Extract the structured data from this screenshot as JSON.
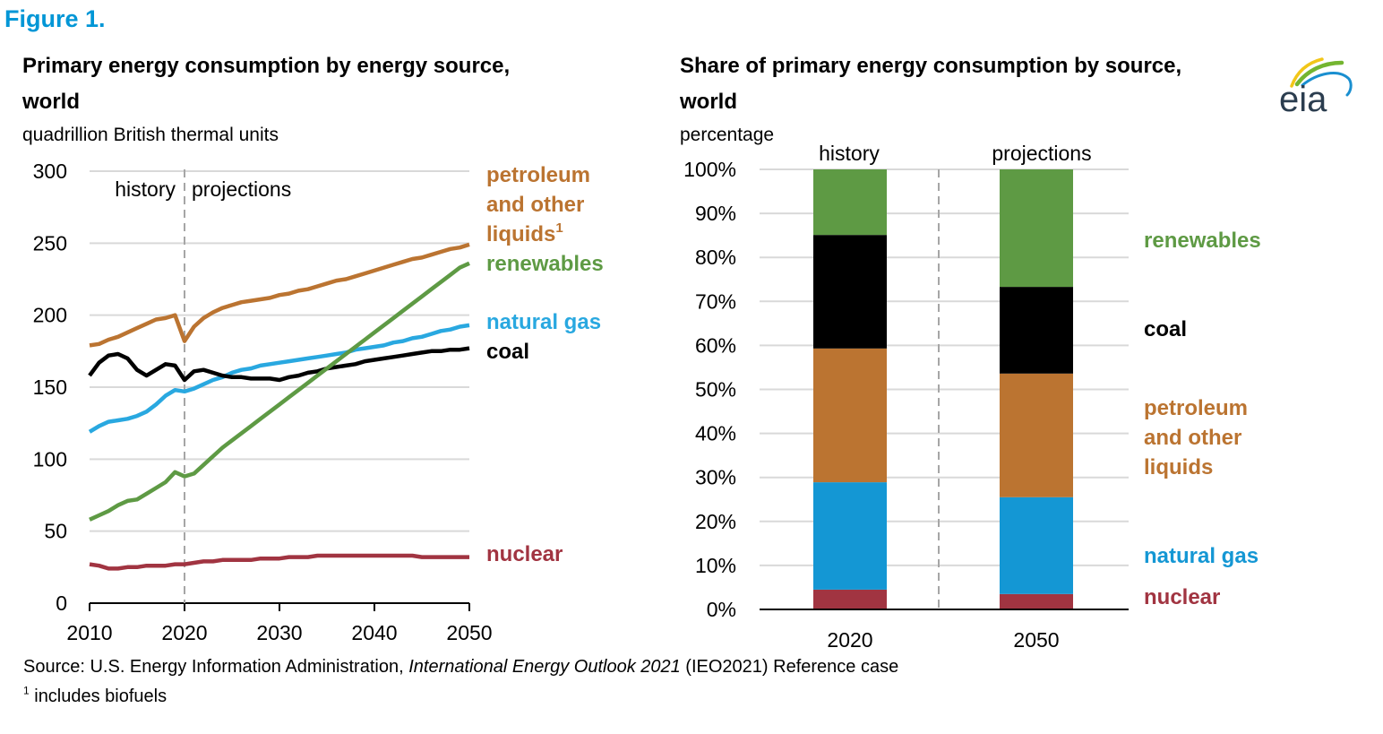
{
  "figure_label": "Figure 1.",
  "source": {
    "prefix": "Source:  U.S. Energy Information Administration, ",
    "italic": "International Energy Outlook 2021",
    "suffix": " (IEO2021) Reference case"
  },
  "footnote": {
    "marker": "1",
    "text": " includes biofuels"
  },
  "logo": {
    "text": "eia",
    "icon": "eia-logo-icon"
  },
  "colors": {
    "petroleum": "#bb7431",
    "renewables": "#5e9a44",
    "natural_gas": "#29a8e0",
    "natural_gas_bar": "#1497d4",
    "coal": "#000000",
    "nuclear": "#a13441",
    "title_blue": "#0096d6",
    "grid": "#d9d9d9",
    "divider": "#a6a6a6"
  },
  "chart_data": [
    {
      "type": "line",
      "title": "Primary energy consumption by energy source, world",
      "title_line1": "Primary energy consumption by energy source,",
      "title_line2": "world",
      "ylabel": "quadrillion British thermal units",
      "xlabel": "",
      "xlim": [
        2010,
        2050
      ],
      "ylim": [
        0,
        300
      ],
      "grid": true,
      "x_ticks": [
        "2010",
        "2020",
        "2030",
        "2040",
        "2050"
      ],
      "y_ticks": [
        "0",
        "50",
        "100",
        "150",
        "200",
        "250",
        "300"
      ],
      "divider_year": 2020,
      "phase_labels": {
        "history": "history",
        "projections": "projections"
      },
      "x": [
        2010,
        2011,
        2012,
        2013,
        2014,
        2015,
        2016,
        2017,
        2018,
        2019,
        2020,
        2021,
        2022,
        2023,
        2024,
        2025,
        2026,
        2027,
        2028,
        2029,
        2030,
        2031,
        2032,
        2033,
        2034,
        2035,
        2036,
        2037,
        2038,
        2039,
        2040,
        2041,
        2042,
        2043,
        2044,
        2045,
        2046,
        2047,
        2048,
        2049,
        2050
      ],
      "series": [
        {
          "key": "petroleum",
          "name": "petroleum and other liquids",
          "label_lines": [
            "petroleum",
            "and other",
            "liquids"
          ],
          "label_sup": "1",
          "values": [
            179,
            180,
            183,
            185,
            188,
            191,
            194,
            197,
            198,
            200,
            182,
            192,
            198,
            202,
            205,
            207,
            209,
            210,
            211,
            212,
            214,
            215,
            217,
            218,
            220,
            222,
            224,
            225,
            227,
            229,
            231,
            233,
            235,
            237,
            239,
            240,
            242,
            244,
            246,
            247,
            249
          ]
        },
        {
          "key": "renewables",
          "name": "renewables",
          "label_lines": [
            "renewables"
          ],
          "values": [
            58,
            61,
            64,
            68,
            71,
            72,
            76,
            80,
            84,
            91,
            88,
            90,
            96,
            102,
            108,
            113,
            118,
            123,
            128,
            133,
            138,
            143,
            148,
            153,
            158,
            163,
            168,
            173,
            178,
            183,
            188,
            193,
            198,
            203,
            208,
            213,
            218,
            223,
            228,
            233,
            236
          ]
        },
        {
          "key": "natural_gas",
          "name": "natural gas",
          "label_lines": [
            "natural gas"
          ],
          "values": [
            119,
            123,
            126,
            127,
            128,
            130,
            133,
            138,
            144,
            148,
            147,
            149,
            152,
            155,
            157,
            160,
            162,
            163,
            165,
            166,
            167,
            168,
            169,
            170,
            171,
            172,
            173,
            174,
            176,
            177,
            178,
            179,
            181,
            182,
            184,
            185,
            187,
            189,
            190,
            192,
            193
          ]
        },
        {
          "key": "coal",
          "name": "coal",
          "label_lines": [
            "coal"
          ],
          "values": [
            158,
            167,
            172,
            173,
            170,
            162,
            158,
            162,
            166,
            165,
            155,
            161,
            162,
            160,
            158,
            157,
            157,
            156,
            156,
            156,
            155,
            157,
            158,
            160,
            161,
            163,
            164,
            165,
            166,
            168,
            169,
            170,
            171,
            172,
            173,
            174,
            175,
            175,
            176,
            176,
            177
          ]
        },
        {
          "key": "nuclear",
          "name": "nuclear",
          "label_lines": [
            "nuclear"
          ],
          "values": [
            27,
            26,
            24,
            24,
            25,
            25,
            26,
            26,
            26,
            27,
            27,
            28,
            29,
            29,
            30,
            30,
            30,
            30,
            31,
            31,
            31,
            32,
            32,
            32,
            33,
            33,
            33,
            33,
            33,
            33,
            33,
            33,
            33,
            33,
            33,
            32,
            32,
            32,
            32,
            32,
            32
          ]
        }
      ]
    },
    {
      "type": "bar",
      "stacked": true,
      "title": "Share of primary energy consumption by source, world",
      "title_line1": "Share of primary energy consumption by source,",
      "title_line2": "world",
      "ylabel": "percentage",
      "xlabel": "",
      "ylim": [
        0,
        100
      ],
      "grid": true,
      "categories": [
        "2020",
        "2050"
      ],
      "phase_labels": [
        "history",
        "projections"
      ],
      "y_ticks": [
        "0%",
        "10%",
        "20%",
        "30%",
        "40%",
        "50%",
        "60%",
        "70%",
        "80%",
        "90%",
        "100%"
      ],
      "series": [
        {
          "key": "nuclear",
          "name": "nuclear",
          "label_lines": [
            "nuclear"
          ],
          "values": [
            4.5,
            3.5
          ]
        },
        {
          "key": "natural_gas",
          "name": "natural gas",
          "label_lines": [
            "natural gas"
          ],
          "values": [
            24.4,
            22.0
          ]
        },
        {
          "key": "petroleum",
          "name": "petroleum and other liquids",
          "label_lines": [
            "petroleum",
            "and other",
            "liquids"
          ],
          "values": [
            30.4,
            28.1
          ]
        },
        {
          "key": "coal",
          "name": "coal",
          "label_lines": [
            "coal"
          ],
          "values": [
            25.8,
            19.7
          ]
        },
        {
          "key": "renewables",
          "name": "renewables",
          "label_lines": [
            "renewables"
          ],
          "values": [
            14.9,
            26.7
          ]
        }
      ]
    }
  ]
}
